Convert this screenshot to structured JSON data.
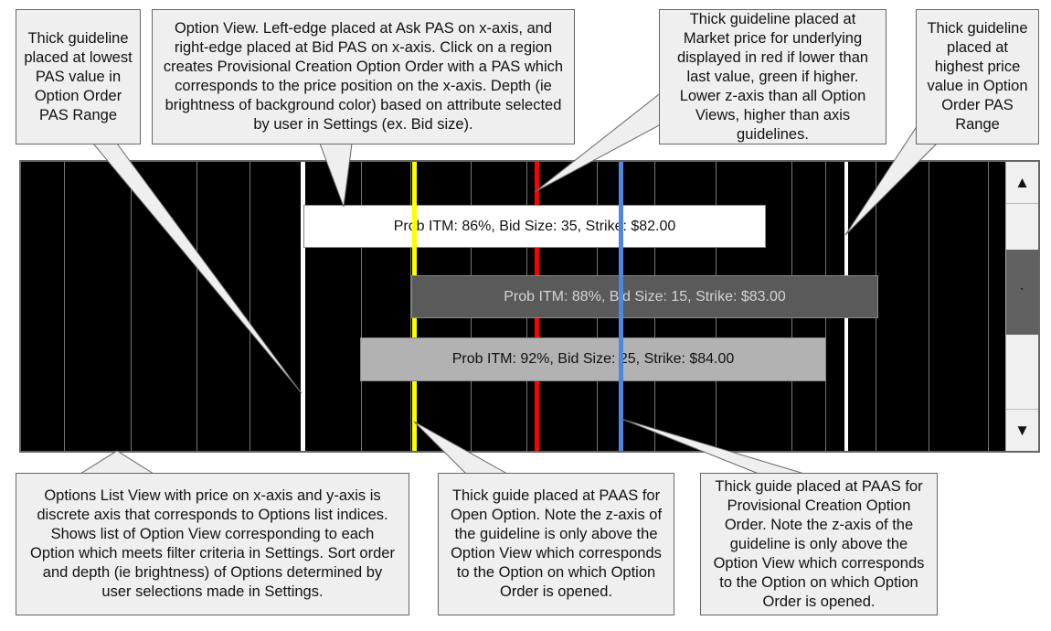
{
  "callouts": {
    "lowest_pas": "Thick guideline placed at lowest PAS value in Option Order PAS Range",
    "option_view": "Option View. Left-edge placed at Ask PAS on x-axis, and right-edge placed at Bid PAS on x-axis. Click on a region creates Provisional Creation Option Order with a PAS which corresponds to the price position on the x-axis. Depth (ie brightness of background color) based on attribute selected by user in Settings (ex. Bid size).",
    "market_price": "Thick guideline placed at Market price for underlying displayed in red if lower than last value, green if higher. Lower z-axis than all Option Views, higher than axis guidelines.",
    "highest_price": "Thick guideline placed at highest price value in Option Order PAS Range",
    "list_view": "Options List View with price on x-axis and y-axis is discrete axis that corresponds to Options list indices. Shows list of Option View corresponding to each Option which meets filter criteria in Settings. Sort order and depth (ie brightness) of Options determined by user selections made in Settings.",
    "paas_open": "Thick guide placed at PAAS for Open Option. Note the z-axis of the guideline is only above the Option View which corresponds to the Option on which Option Order is opened.",
    "paas_provisional": "Thick guide placed at PAAS for Provisional Creation Option Order. Note the z-axis of the guideline is only above the Option View which corresponds to the Option on which Option Order is opened."
  },
  "options": [
    {
      "label": "Prob ITM: 86%, Bid Size: 35, Strike: $82.00",
      "bg": "#ffffff",
      "fg": "#111111"
    },
    {
      "label": "Prob ITM: 88%, Bid Size: 15, Strike: $83.00",
      "bg": "#5a5a5a",
      "fg": "#d4d4d4"
    },
    {
      "label": "Prob ITM: 92%, Bid Size: 25, Strike: $84.00",
      "bg": "#b2b2b2",
      "fg": "#111111"
    }
  ],
  "guidelines": {
    "lowest_pas_color": "#ffffff",
    "highest_price_color": "#ffffff",
    "market_price_color": "#ff0000",
    "paas_open_color": "#ffff00",
    "paas_provisional_color": "#4f86e0"
  },
  "scrollbar": {
    "up_icon": "▲",
    "down_icon": "▼",
    "thumb_mark": "`"
  }
}
